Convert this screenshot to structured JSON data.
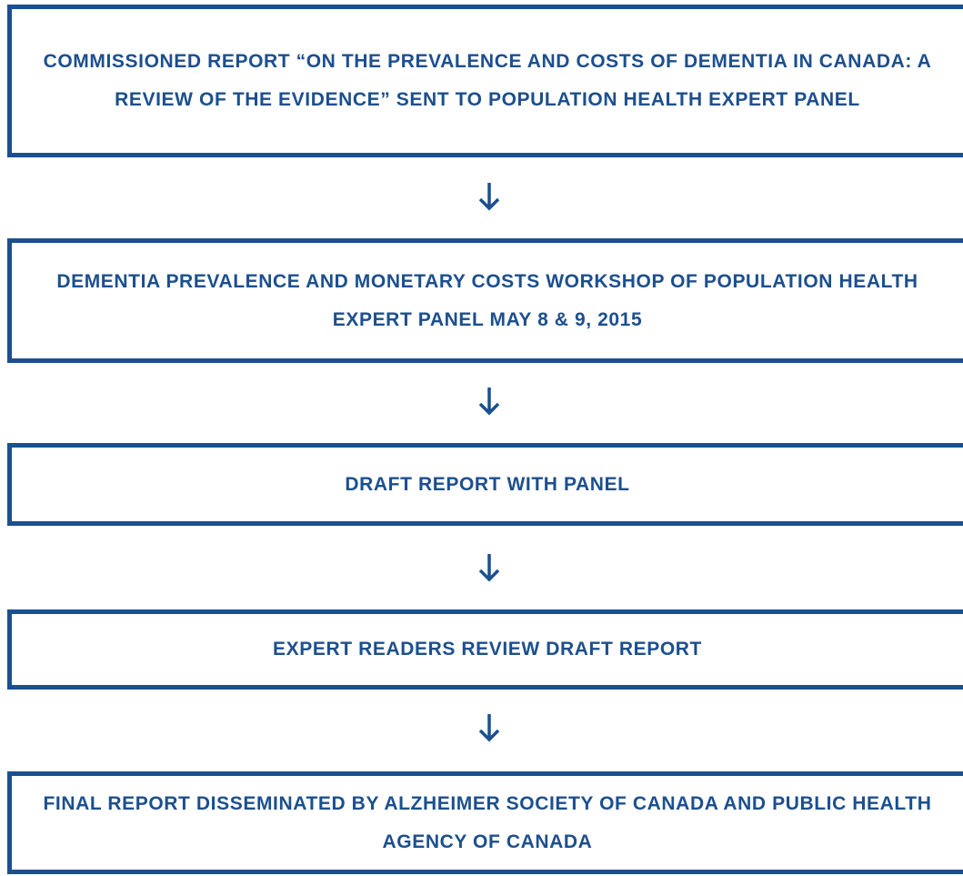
{
  "steps": [
    "COMMISSIONED REPORT “ON THE PREVALENCE AND COSTS OF DEMENTIA IN CANADA: A REVIEW OF THE EVIDENCE” SENT TO POPULATION HEALTH EXPERT PANEL",
    "DEMENTIA PREVALENCE AND MONETARY COSTS WORKSHOP OF POPULATION HEALTH EXPERT PANEL MAY 8 & 9, 2015",
    "DRAFT REPORT WITH PANEL",
    "EXPERT READERS REVIEW DRAFT REPORT",
    "FINAL REPORT DISSEMINATED BY ALZHEIMER SOCIETY OF CANADA AND PUBLIC HEALTH AGENCY OF CANADA"
  ]
}
